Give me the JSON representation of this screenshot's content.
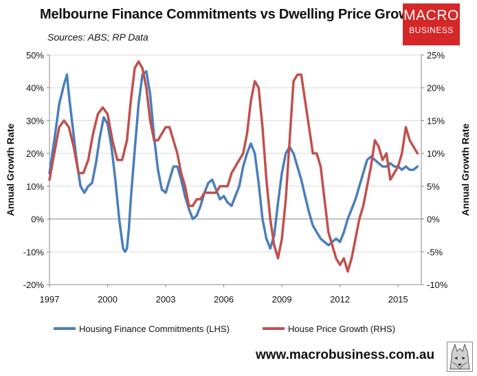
{
  "header": {
    "title": "Melbourne Finance Commitments vs Dwelling Price Growth",
    "source": "Sources: ABS; RP Data"
  },
  "logo": {
    "line1": "MACRO",
    "line2": "BUSINESS",
    "color": "#d62728"
  },
  "footer": {
    "website": "www.macrobusiness.com.au"
  },
  "chart_data": {
    "type": "line",
    "title": "Melbourne Finance Commitments vs Dwelling Price Growth",
    "y_left": {
      "label": "Annual Growth Rate",
      "range": [
        -20,
        50
      ],
      "ticks": [
        "-20%",
        "-10%",
        "0%",
        "10%",
        "20%",
        "30%",
        "40%",
        "50%"
      ],
      "tick_values": [
        -20,
        -10,
        0,
        10,
        20,
        30,
        40,
        50
      ]
    },
    "y_right": {
      "label": "Annual Growth Rate",
      "range": [
        -10,
        25
      ],
      "ticks": [
        "-10%",
        "-5%",
        "0%",
        "5%",
        "10%",
        "15%",
        "20%",
        "25%"
      ],
      "tick_values": [
        -10,
        -5,
        0,
        5,
        10,
        15,
        20,
        25
      ]
    },
    "x_axis": {
      "range": [
        1997,
        2016.2
      ],
      "ticks": [
        "1997",
        "2000",
        "2003",
        "2006",
        "2009",
        "2012",
        "2015"
      ],
      "tick_values": [
        1997,
        2000,
        2003,
        2006,
        2009,
        2012,
        2015
      ]
    },
    "grid": "horizontal",
    "legend_position": "bottom",
    "series": [
      {
        "name": "Housing Finance Commitments (LHS)",
        "axis": "left",
        "color": "#4a7ebb",
        "x": [
          1997.0,
          1997.25,
          1997.5,
          1997.75,
          1997.9,
          1998.0,
          1998.2,
          1998.4,
          1998.6,
          1998.8,
          1999.0,
          1999.2,
          1999.4,
          1999.6,
          1999.8,
          2000.0,
          2000.2,
          2000.4,
          2000.6,
          2000.8,
          2000.9,
          2001.0,
          2001.1,
          2001.2,
          2001.4,
          2001.6,
          2001.8,
          2002.0,
          2002.2,
          2002.4,
          2002.6,
          2002.8,
          2003.0,
          2003.2,
          2003.4,
          2003.6,
          2003.8,
          2004.0,
          2004.2,
          2004.4,
          2004.6,
          2004.8,
          2005.0,
          2005.2,
          2005.4,
          2005.6,
          2005.8,
          2006.0,
          2006.2,
          2006.4,
          2006.6,
          2006.8,
          2007.0,
          2007.2,
          2007.4,
          2007.6,
          2007.8,
          2008.0,
          2008.2,
          2008.4,
          2008.6,
          2008.8,
          2009.0,
          2009.2,
          2009.4,
          2009.6,
          2009.8,
          2010.0,
          2010.2,
          2010.4,
          2010.6,
          2010.8,
          2011.0,
          2011.2,
          2011.4,
          2011.6,
          2011.8,
          2012.0,
          2012.2,
          2012.4,
          2012.6,
          2012.8,
          2013.0,
          2013.2,
          2013.4,
          2013.6,
          2013.8,
          2014.0,
          2014.2,
          2014.4,
          2014.6,
          2014.8,
          2015.0,
          2015.2,
          2015.4,
          2015.6,
          2015.8,
          2016.0
        ],
        "values": [
          14,
          24,
          35,
          41,
          44,
          38,
          28,
          18,
          10,
          8,
          10,
          11,
          17,
          25,
          31,
          29,
          22,
          12,
          0,
          -9,
          -10,
          -9,
          -3,
          6,
          21,
          35,
          44,
          45,
          38,
          25,
          15,
          9,
          8,
          12,
          16,
          16,
          12,
          7,
          3,
          0,
          1,
          4,
          8,
          11,
          12,
          9,
          6,
          7,
          5,
          4,
          7,
          10,
          16,
          20,
          23,
          20,
          11,
          0,
          -6,
          -9,
          -5,
          5,
          14,
          20,
          22,
          20,
          16,
          12,
          7,
          2,
          -2,
          -4,
          -6,
          -7,
          -8,
          -7,
          -6,
          -7,
          -4,
          0,
          3,
          6,
          10,
          14,
          18,
          19,
          18,
          17,
          16,
          16,
          17,
          16,
          16,
          15,
          16,
          15,
          15,
          16
        ]
      },
      {
        "name": "House Price Growth (RHS)",
        "axis": "right",
        "color": "#c0504d",
        "x": [
          1997.0,
          1997.25,
          1997.5,
          1997.75,
          1998.0,
          1998.25,
          1998.5,
          1998.75,
          1999.0,
          1999.25,
          1999.5,
          1999.75,
          2000.0,
          2000.25,
          2000.5,
          2000.75,
          2001.0,
          2001.2,
          2001.4,
          2001.6,
          2001.8,
          2002.0,
          2002.2,
          2002.4,
          2002.6,
          2002.8,
          2003.0,
          2003.2,
          2003.4,
          2003.6,
          2003.8,
          2004.0,
          2004.2,
          2004.4,
          2004.6,
          2004.8,
          2005.0,
          2005.2,
          2005.4,
          2005.6,
          2005.8,
          2006.0,
          2006.2,
          2006.4,
          2006.6,
          2006.8,
          2007.0,
          2007.2,
          2007.4,
          2007.6,
          2007.8,
          2008.0,
          2008.2,
          2008.4,
          2008.6,
          2008.8,
          2009.0,
          2009.2,
          2009.4,
          2009.6,
          2009.8,
          2010.0,
          2010.2,
          2010.4,
          2010.6,
          2010.8,
          2011.0,
          2011.2,
          2011.4,
          2011.6,
          2011.8,
          2012.0,
          2012.2,
          2012.4,
          2012.6,
          2012.8,
          2013.0,
          2013.2,
          2013.4,
          2013.6,
          2013.8,
          2014.0,
          2014.2,
          2014.4,
          2014.6,
          2014.8,
          2015.0,
          2015.2,
          2015.4,
          2015.6,
          2015.8,
          2016.0
        ],
        "values": [
          6,
          10,
          14,
          15,
          14,
          11,
          7,
          7,
          9,
          13,
          16,
          17,
          16,
          12,
          9,
          9,
          12,
          18,
          23,
          24,
          23,
          20,
          15,
          12,
          12,
          13,
          14,
          14,
          12,
          10,
          7,
          5,
          2,
          2,
          3,
          3,
          4,
          4,
          4,
          4,
          5,
          5,
          5,
          7,
          8,
          9,
          10,
          13,
          18,
          21,
          20,
          14,
          6,
          0,
          -4,
          -6,
          -3,
          3,
          12,
          21,
          22,
          22,
          18,
          14,
          10,
          10,
          8,
          3,
          -2,
          -4,
          -6,
          -7,
          -6,
          -8,
          -6,
          -3,
          0,
          2,
          5,
          8,
          12,
          11,
          9,
          10,
          6,
          7,
          8,
          10,
          14,
          12,
          11,
          10
        ]
      }
    ]
  }
}
